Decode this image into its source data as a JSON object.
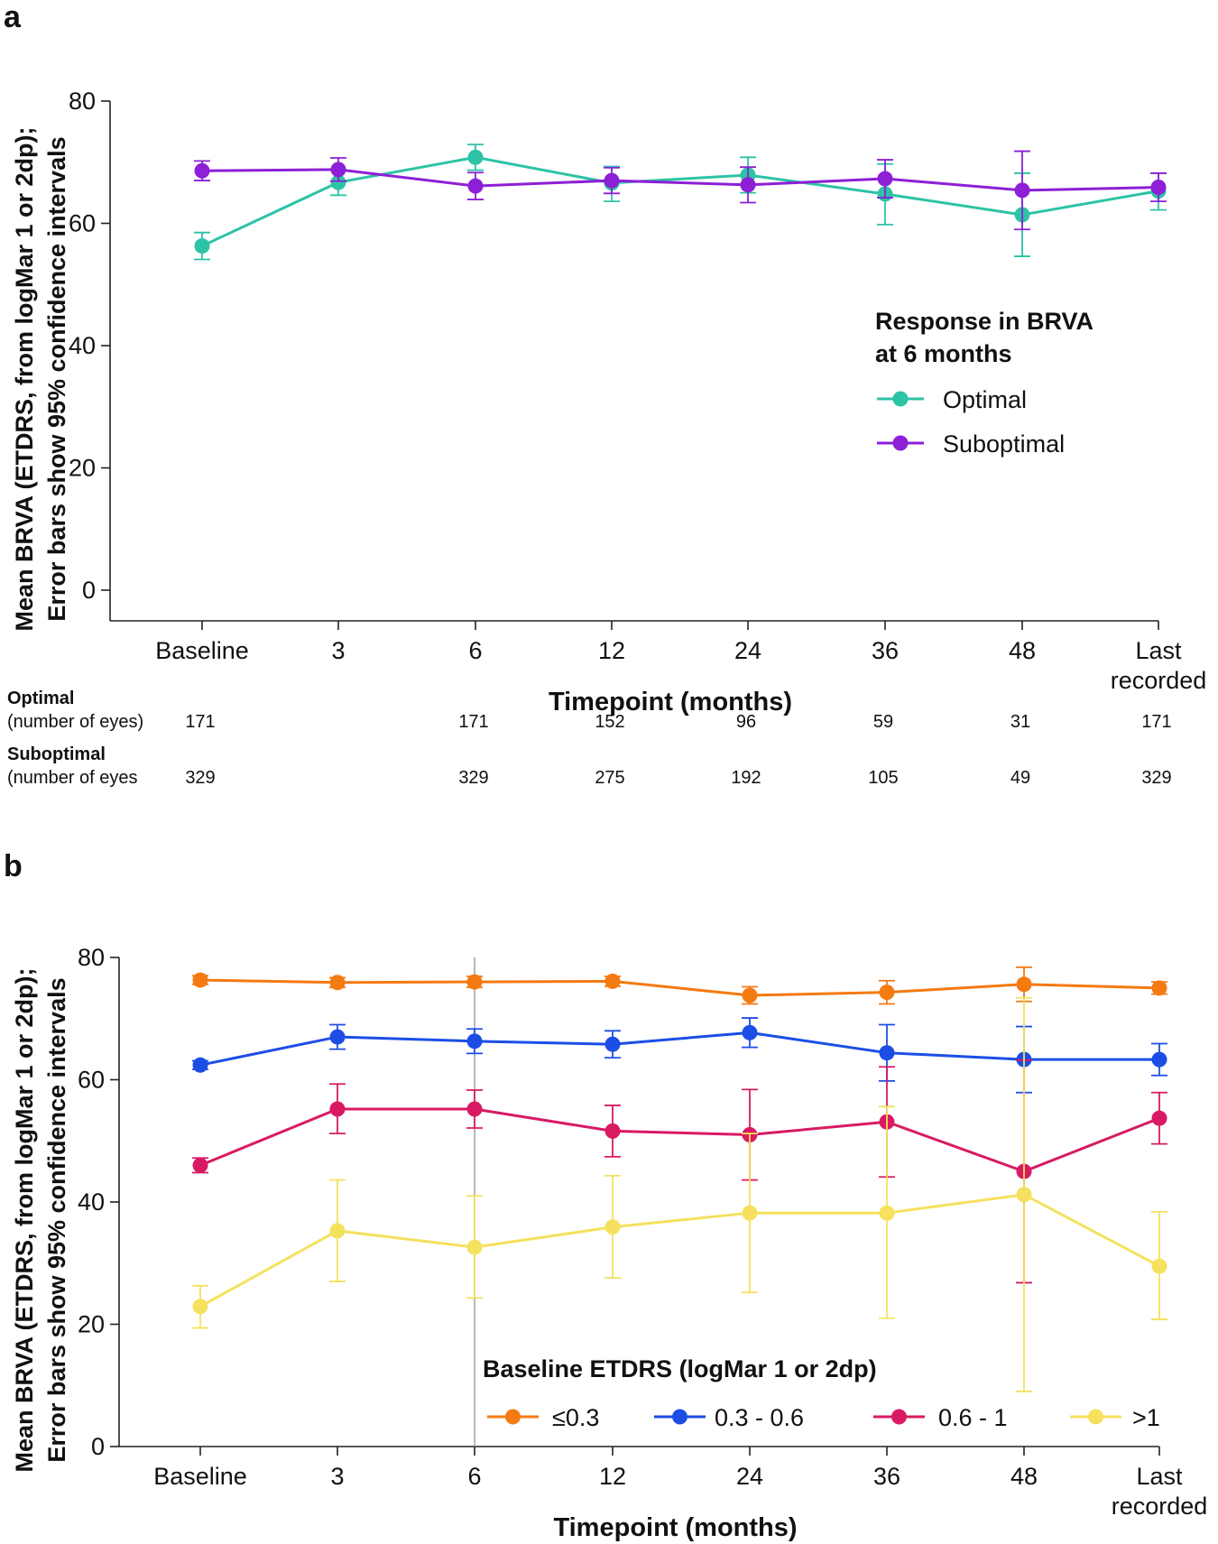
{
  "chart_data": [
    {
      "panel": "a",
      "type": "line",
      "xlabel": "Timepoint (months)",
      "ylabel_line1": "Mean BRVA (ETDRS, from logMar 1 or 2dp);",
      "ylabel_line2": "Error bars show 95% confidence intervals",
      "ylim": [
        -5,
        80
      ],
      "yticks": [
        0,
        20,
        40,
        60,
        80
      ],
      "categories": [
        "Baseline",
        "3",
        "6",
        "12",
        "24",
        "36",
        "48",
        "Last recorded"
      ],
      "category_lines": [
        [
          "Baseline"
        ],
        [
          "3"
        ],
        [
          "6"
        ],
        [
          "12"
        ],
        [
          "24"
        ],
        [
          "36"
        ],
        [
          "48"
        ],
        [
          "Last",
          "recorded"
        ]
      ],
      "legend_title_lines": [
        "Response in BRVA",
        "at 6 months"
      ],
      "series": [
        {
          "name": "Optimal",
          "color": "#2cc3a6",
          "values": [
            56.3,
            66.7,
            70.8,
            66.6,
            67.9,
            64.8,
            61.4,
            65.3
          ],
          "lower": [
            54.1,
            64.6,
            68.7,
            63.6,
            65.0,
            59.8,
            54.6,
            62.2
          ],
          "upper": [
            58.5,
            68.8,
            72.9,
            69.3,
            70.8,
            69.7,
            68.2,
            68.2
          ]
        },
        {
          "name": "Suboptimal",
          "color": "#8d1fd6",
          "values": [
            68.6,
            68.8,
            66.1,
            67.0,
            66.3,
            67.3,
            65.4,
            65.9
          ],
          "lower": [
            67.0,
            66.9,
            63.9,
            64.9,
            63.4,
            64.2,
            59.0,
            63.6
          ],
          "upper": [
            70.2,
            70.7,
            68.3,
            69.1,
            69.2,
            70.4,
            71.8,
            68.2
          ]
        }
      ],
      "number_table": {
        "rows": [
          {
            "head": "Optimal",
            "sub": "(number of eyes)",
            "values": [
              "171",
              "",
              "171",
              "152",
              "96",
              "59",
              "31",
              "171"
            ]
          },
          {
            "head": "Suboptimal",
            "sub": "(number of eyes",
            "values": [
              "329",
              "",
              "329",
              "275",
              "192",
              "105",
              "49",
              "329"
            ]
          }
        ]
      }
    },
    {
      "panel": "b",
      "type": "line",
      "xlabel": "Timepoint (months)",
      "ylabel_line1": "Mean BRVA (ETDRS, from logMar 1 or 2dp);",
      "ylabel_line2": "Error bars show 95% confidence intervals",
      "ylim": [
        0,
        80
      ],
      "yticks": [
        0,
        20,
        40,
        60,
        80
      ],
      "categories": [
        "Baseline",
        "3",
        "6",
        "12",
        "24",
        "36",
        "48",
        "Last recorded"
      ],
      "category_lines": [
        [
          "Baseline"
        ],
        [
          "3"
        ],
        [
          "6"
        ],
        [
          "12"
        ],
        [
          "24"
        ],
        [
          "36"
        ],
        [
          "48"
        ],
        [
          "Last",
          "recorded"
        ]
      ],
      "reference_line_at": "6",
      "legend_title": "Baseline ETDRS (logMar 1 or 2dp)",
      "series": [
        {
          "name": "≤0.3",
          "color": "#f47a12",
          "values": [
            76.3,
            75.9,
            76.0,
            76.1,
            73.8,
            74.3,
            75.6,
            75.0
          ],
          "lower": [
            75.6,
            75.1,
            75.1,
            75.3,
            72.4,
            72.4,
            72.8,
            74.0
          ],
          "upper": [
            77.0,
            76.7,
            76.9,
            76.9,
            75.2,
            76.2,
            78.4,
            76.0
          ]
        },
        {
          "name": "0.3 - 0.6",
          "color": "#1c4ee6",
          "values": [
            62.4,
            67.0,
            66.3,
            65.8,
            67.7,
            64.4,
            63.3,
            63.3
          ],
          "lower": [
            61.7,
            65.0,
            64.3,
            63.6,
            65.3,
            59.8,
            57.9,
            60.7
          ],
          "upper": [
            63.1,
            69.0,
            68.3,
            68.0,
            70.1,
            69.0,
            68.7,
            65.9
          ]
        },
        {
          "name": "0.6 - 1",
          "color": "#d91a63",
          "values": [
            46.0,
            55.2,
            55.2,
            51.6,
            51.0,
            53.1,
            45.0,
            53.7
          ],
          "lower": [
            44.8,
            51.2,
            52.1,
            47.4,
            43.6,
            44.1,
            26.8,
            49.5
          ],
          "upper": [
            47.2,
            59.3,
            58.3,
            55.8,
            58.4,
            62.1,
            63.2,
            57.9
          ]
        },
        {
          "name": ">1",
          "color": "#f5e15d",
          "values": [
            22.9,
            35.3,
            32.6,
            35.9,
            38.2,
            38.2,
            41.2,
            29.5
          ],
          "lower": [
            19.4,
            27.0,
            24.3,
            27.6,
            25.2,
            21.0,
            9.0,
            20.8
          ],
          "upper": [
            26.3,
            43.6,
            41.0,
            44.3,
            51.2,
            55.6,
            73.4,
            38.4
          ]
        }
      ]
    }
  ]
}
